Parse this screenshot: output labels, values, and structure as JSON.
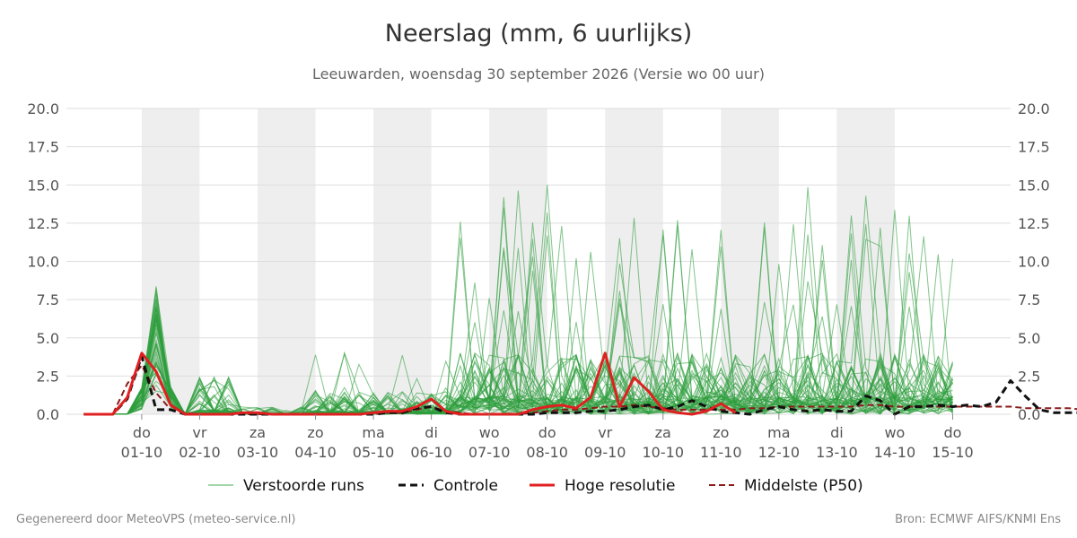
{
  "chart_data": {
    "type": "line",
    "title": "Neerslag (mm, 6 uurlijks)",
    "subtitle": "Leeuwarden, woensdag 30 september 2026 (Versie wo 00 uur)",
    "ylim": [
      0,
      20
    ],
    "y_ticks": [
      "0.0",
      "2.5",
      "5.0",
      "7.5",
      "10.0",
      "12.5",
      "15.0",
      "17.5",
      "20.0"
    ],
    "x_range_days": [
      0,
      15
    ],
    "x_ticks": [
      {
        "day": "do",
        "date": "01-10"
      },
      {
        "day": "vr",
        "date": "02-10"
      },
      {
        "day": "za",
        "date": "03-10"
      },
      {
        "day": "zo",
        "date": "04-10"
      },
      {
        "day": "ma",
        "date": "05-10"
      },
      {
        "day": "di",
        "date": "06-10"
      },
      {
        "day": "wo",
        "date": "07-10"
      },
      {
        "day": "do",
        "date": "08-10"
      },
      {
        "day": "vr",
        "date": "09-10"
      },
      {
        "day": "za",
        "date": "10-10"
      },
      {
        "day": "zo",
        "date": "11-10"
      },
      {
        "day": "ma",
        "date": "12-10"
      },
      {
        "day": "di",
        "date": "13-10"
      },
      {
        "day": "wo",
        "date": "14-10"
      },
      {
        "day": "do",
        "date": "15-10"
      }
    ],
    "shaded_day_bands": [
      "01-10",
      "03-10",
      "05-10",
      "07-10",
      "09-10",
      "11-10",
      "13-10"
    ],
    "grid": true,
    "legend_position": "bottom",
    "series": [
      {
        "name": "Controle",
        "color": "#111111",
        "dash": true,
        "values": [
          0,
          0,
          0,
          1.0,
          3.8,
          0.3,
          0.3,
          0,
          0,
          0,
          0,
          0,
          0,
          0,
          0,
          0,
          0,
          0,
          0,
          0,
          0,
          0.1,
          0.1,
          0.4,
          0.5,
          0.1,
          0,
          0,
          0,
          0,
          0,
          0,
          0.1,
          0.1,
          0.1,
          0.2,
          0.2,
          0.3,
          0.5,
          0.6,
          0.3,
          0.5,
          0.9,
          0.5,
          0.2,
          0.1,
          0,
          0.3,
          0.5,
          0.3,
          0.2,
          0.3,
          0.2,
          0.2,
          1.2,
          0.9,
          0,
          0.5,
          0.5,
          0.6,
          0.5,
          0.6,
          0.5,
          0.8,
          2.2,
          1.2,
          0.3,
          0.1,
          0.1,
          0.1,
          0.1,
          0.1,
          0.2,
          0.2,
          0.2,
          0.2,
          0.1,
          0.1,
          0.2,
          0.2,
          0.2,
          0.2,
          0.2,
          0.2,
          0.2
        ]
      },
      {
        "name": "Hoge resolutie",
        "color": "#e02020",
        "dash": false,
        "values": [
          0,
          0,
          0,
          1.1,
          4.0,
          2.8,
          0.6,
          0,
          0,
          0,
          0,
          0.1,
          0.1,
          0,
          0,
          0,
          0,
          0,
          0,
          0,
          0.1,
          0.2,
          0.2,
          0.5,
          1.0,
          0.2,
          0,
          0,
          0,
          0,
          0,
          0.3,
          0.5,
          0.6,
          0.4,
          1.1,
          4.0,
          0.5,
          2.4,
          1.5,
          0.3,
          0.1,
          0,
          0.2,
          0.7,
          0.1
        ]
      },
      {
        "name": "Middelste (P50)",
        "color": "#8b1a1a",
        "dash": true,
        "values": [
          0,
          0,
          0,
          2.0,
          3.2,
          1.4,
          0.3,
          0.1,
          0,
          0,
          0,
          0,
          0,
          0,
          0,
          0,
          0,
          0,
          0,
          0,
          0,
          0.1,
          0.1,
          0.3,
          0.5,
          0.2,
          0.1,
          0,
          0,
          0,
          0,
          0.1,
          0.2,
          0.3,
          0.3,
          0.4,
          0.5,
          0.5,
          0.6,
          0.5,
          0.4,
          0.3,
          0.3,
          0.3,
          0.3,
          0.3,
          0.4,
          0.4,
          0.5,
          0.5,
          0.5,
          0.5,
          0.5,
          0.5,
          0.6,
          0.6,
          0.5,
          0.5,
          0.5,
          0.5,
          0.5,
          0.5,
          0.5,
          0.5,
          0.5,
          0.4,
          0.4,
          0.4,
          0.4,
          0.3,
          0.3,
          0.3,
          0.3,
          0.3,
          0.3,
          0.3,
          0.3,
          0.3,
          0.3,
          0.3,
          0.2,
          0.2,
          0.2,
          0.2,
          0.2
        ]
      },
      {
        "name": "Verstoorde runs",
        "color": "#2e9e3e",
        "members": 50,
        "estimated": true
      }
    ]
  },
  "legend": {
    "ensemble": "Verstoorde runs",
    "control": "Controle",
    "hires": "Hoge resolutie",
    "median": "Middelste (P50)"
  },
  "footer": {
    "left": "Gegenereerd door MeteoVPS (meteo-service.nl)",
    "right": "Bron: ECMWF AIFS/KNMI Ens"
  }
}
